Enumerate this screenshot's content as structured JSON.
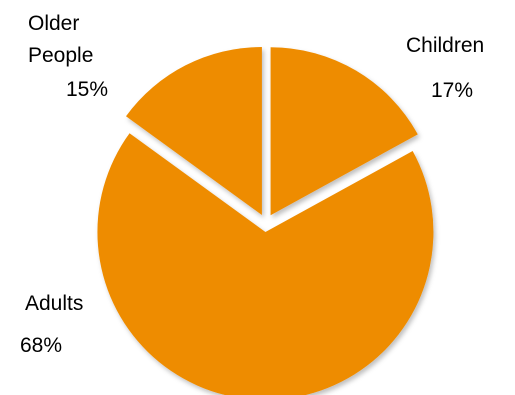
{
  "chart_data": {
    "type": "pie",
    "slices": [
      {
        "label": "Children",
        "value": 17,
        "value_label": "17%"
      },
      {
        "label": "Adults",
        "value": 68,
        "value_label": "68%"
      },
      {
        "label": "Older People",
        "label_lines": [
          "Older",
          "People"
        ],
        "value": 15,
        "value_label": "15%"
      }
    ],
    "colors": {
      "slice": "#EE8C00",
      "text": "#000000"
    },
    "exploded": true
  }
}
